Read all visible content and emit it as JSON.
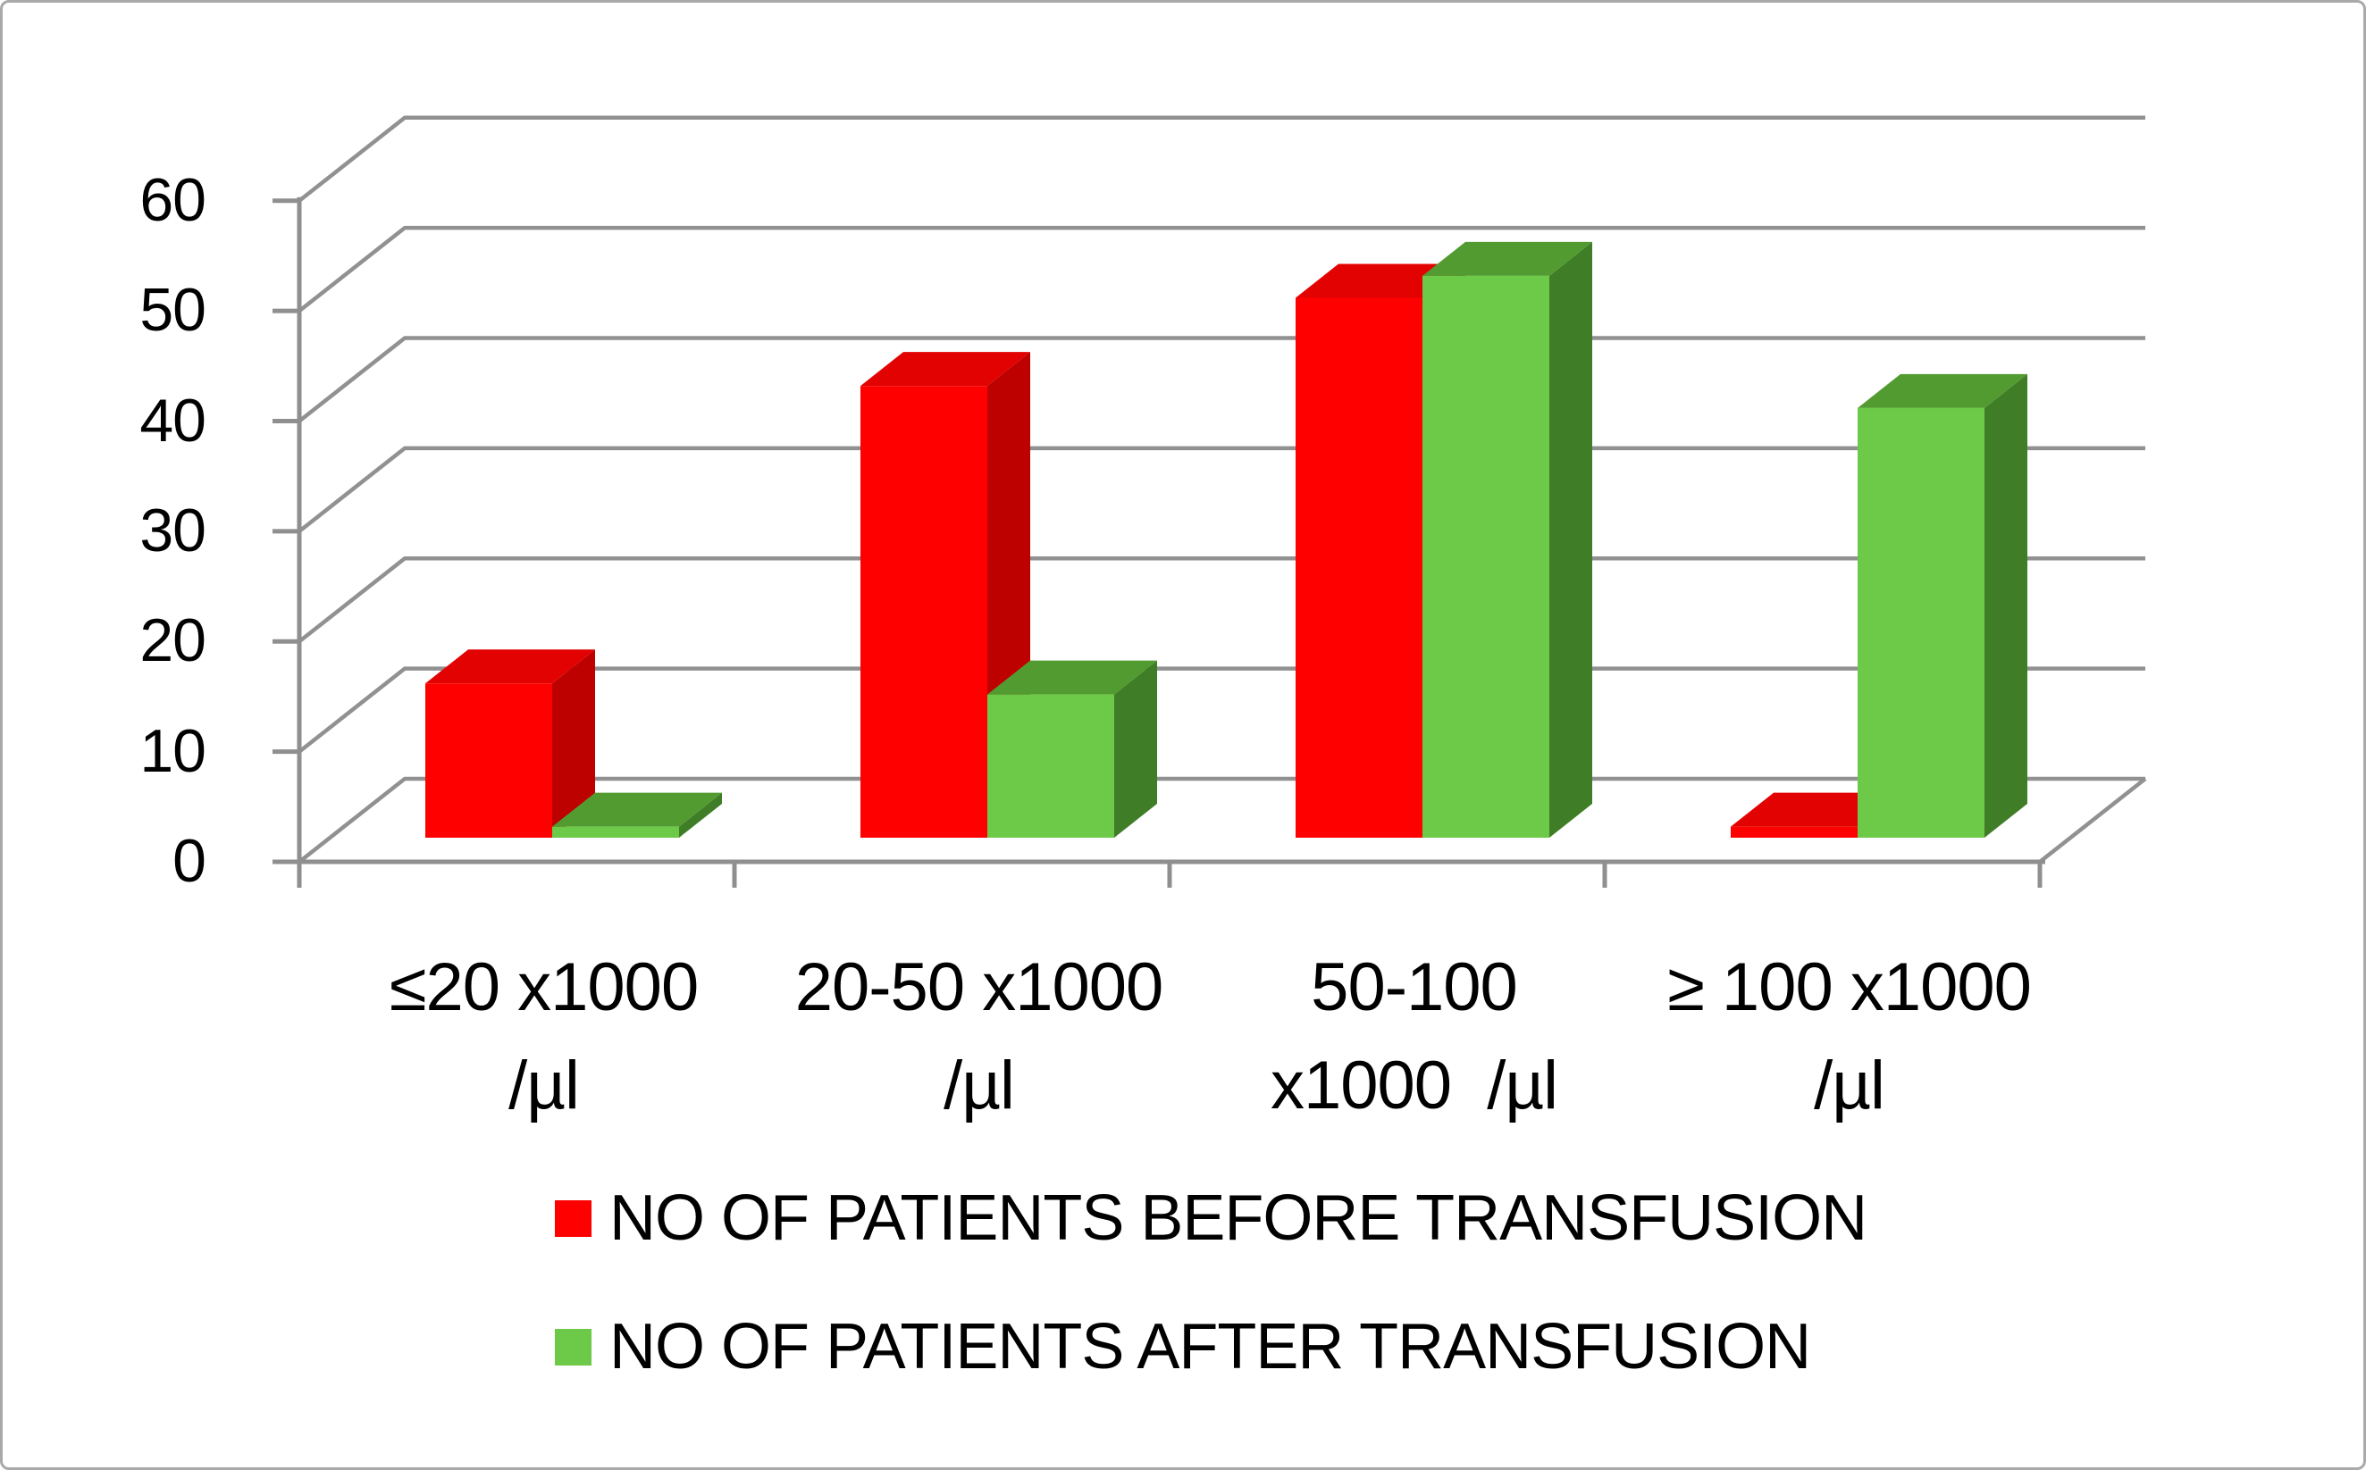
{
  "chart_data": {
    "type": "bar",
    "variant": "3d-clustered-column",
    "title": "",
    "categories": [
      "≤20 x1000 /µl",
      "20-50 x1000 /µl",
      "50-100 x1000  /µl",
      "≥ 100 x1000 /µl"
    ],
    "category_labels": [
      {
        "line1": "≤20 x1000",
        "line2": "/µl"
      },
      {
        "line1": "20-50 x1000",
        "line2": "/µl"
      },
      {
        "line1": "50-100",
        "line2": "x1000  /µl"
      },
      {
        "line1": "≥ 100 x1000",
        "line2": "/µl"
      }
    ],
    "series": [
      {
        "name": "NO OF PATIENTS BEFORE TRANSFUSION",
        "values": [
          14,
          41,
          49,
          1
        ],
        "color_front": "#fe0000",
        "color_top": "#e20202",
        "color_side": "#bd0000"
      },
      {
        "name": "NO OF PATIENTS AFTER TRANSFUSION",
        "values": [
          1,
          13,
          51,
          39
        ],
        "color_front": "#6dc948",
        "color_top": "#529b31",
        "color_side": "#3f7d26"
      }
    ],
    "y_axis": {
      "min": 0,
      "max": 60,
      "step": 10,
      "tick_labels": [
        "0",
        "10",
        "20",
        "30",
        "40",
        "50",
        "60"
      ]
    },
    "grid": true,
    "legend_position": "bottom-left",
    "colors": {
      "gridline": "#919191",
      "axis": "#8f8f8f",
      "text": "#000000",
      "background": "#ffffff",
      "border": "#a9a9a9"
    }
  }
}
